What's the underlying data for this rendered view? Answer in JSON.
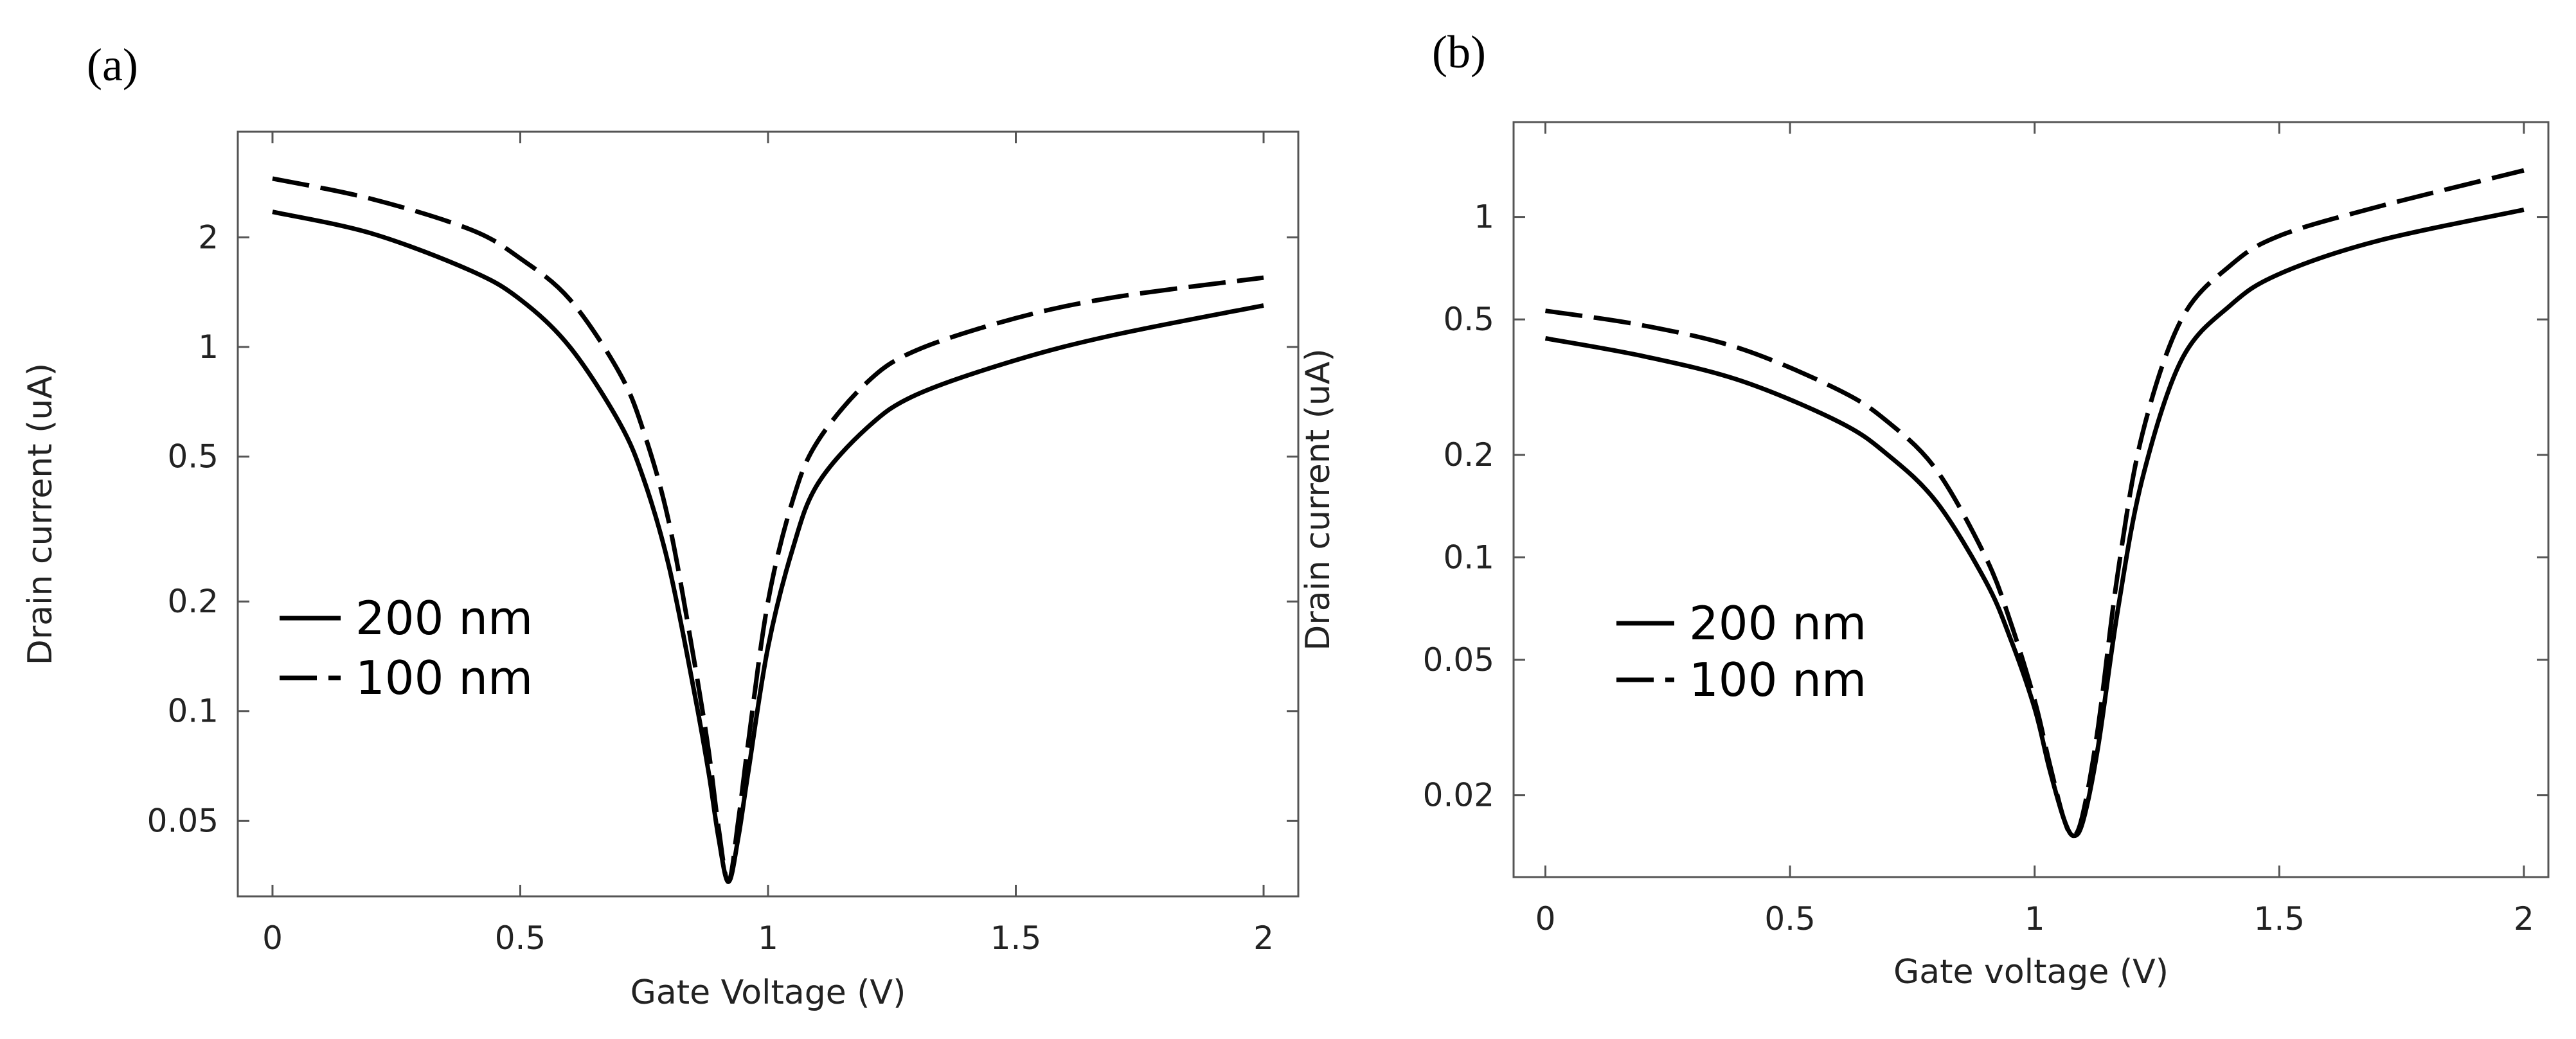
{
  "chart_data": [
    {
      "type": "line",
      "panel_label": "(a)",
      "xlabel": "Gate Voltage (V)",
      "ylabel": "Drain current (uA)",
      "yscale": "log",
      "xlim": [
        -0.07,
        2.07
      ],
      "ylim": [
        0.031,
        3.9
      ],
      "x_ticks": [
        {
          "value": 0,
          "label": "0"
        },
        {
          "value": 0.5,
          "label": "0.5"
        },
        {
          "value": 1,
          "label": "1"
        },
        {
          "value": 1.5,
          "label": "1.5"
        },
        {
          "value": 2,
          "label": "2"
        }
      ],
      "y_ticks": [
        {
          "value": 0.05,
          "label": "0.05"
        },
        {
          "value": 0.1,
          "label": "0.1"
        },
        {
          "value": 0.2,
          "label": "0.2"
        },
        {
          "value": 0.5,
          "label": "0.5"
        },
        {
          "value": 1,
          "label": "1"
        },
        {
          "value": 2,
          "label": "2"
        }
      ],
      "legend_position": "bottom-left",
      "series": [
        {
          "name": "200 nm",
          "style": "solid",
          "x": [
            0,
            0.2,
            0.4,
            0.5,
            0.6,
            0.7,
            0.75,
            0.8,
            0.85,
            0.88,
            0.9,
            0.92,
            0.94,
            0.96,
            1.0,
            1.05,
            1.1,
            1.2,
            1.3,
            1.5,
            1.7,
            2.0
          ],
          "y": [
            2.35,
            2.05,
            1.62,
            1.35,
            1.0,
            0.62,
            0.43,
            0.25,
            0.115,
            0.068,
            0.045,
            0.034,
            0.045,
            0.068,
            0.15,
            0.28,
            0.42,
            0.6,
            0.74,
            0.92,
            1.08,
            1.3
          ]
        },
        {
          "name": "100 nm",
          "style": "dashed",
          "x": [
            0,
            0.2,
            0.4,
            0.5,
            0.6,
            0.7,
            0.75,
            0.8,
            0.85,
            0.88,
            0.9,
            0.92,
            0.94,
            0.96,
            1.0,
            1.05,
            1.1,
            1.2,
            1.3,
            1.5,
            1.7,
            2.0
          ],
          "y": [
            2.9,
            2.55,
            2.1,
            1.75,
            1.35,
            0.85,
            0.58,
            0.33,
            0.14,
            0.078,
            0.048,
            0.034,
            0.05,
            0.082,
            0.2,
            0.38,
            0.55,
            0.8,
            0.98,
            1.2,
            1.37,
            1.55
          ]
        }
      ]
    },
    {
      "type": "line",
      "panel_label": "(b)",
      "xlabel": "Gate voltage (V)",
      "ylabel": "Drain current (uA)",
      "yscale": "log",
      "xlim": [
        -0.065,
        2.05
      ],
      "ylim": [
        0.0115,
        1.9
      ],
      "x_ticks": [
        {
          "value": 0,
          "label": "0"
        },
        {
          "value": 0.5,
          "label": "0.5"
        },
        {
          "value": 1,
          "label": "1"
        },
        {
          "value": 1.5,
          "label": "1.5"
        },
        {
          "value": 2,
          "label": "2"
        }
      ],
      "y_ticks": [
        {
          "value": 0.02,
          "label": "0.02"
        },
        {
          "value": 0.05,
          "label": "0.05"
        },
        {
          "value": 0.1,
          "label": "0.1"
        },
        {
          "value": 0.2,
          "label": "0.2"
        },
        {
          "value": 0.5,
          "label": "0.5"
        },
        {
          "value": 1,
          "label": "1"
        }
      ],
      "legend_position": "bottom-left",
      "series": [
        {
          "name": "200 nm",
          "style": "solid",
          "x": [
            0,
            0.2,
            0.4,
            0.6,
            0.7,
            0.8,
            0.9,
            0.95,
            1.0,
            1.03,
            1.06,
            1.08,
            1.1,
            1.13,
            1.17,
            1.22,
            1.3,
            1.4,
            1.5,
            1.7,
            2.0
          ],
          "y": [
            0.44,
            0.39,
            0.33,
            0.25,
            0.2,
            0.145,
            0.085,
            0.058,
            0.036,
            0.024,
            0.017,
            0.0152,
            0.017,
            0.028,
            0.07,
            0.17,
            0.38,
            0.55,
            0.68,
            0.85,
            1.05
          ]
        },
        {
          "name": "100 nm",
          "style": "dashed",
          "x": [
            0,
            0.2,
            0.4,
            0.6,
            0.7,
            0.8,
            0.9,
            0.95,
            1.0,
            1.03,
            1.06,
            1.08,
            1.1,
            1.13,
            1.17,
            1.22,
            1.3,
            1.4,
            1.5,
            1.7,
            2.0
          ],
          "y": [
            0.53,
            0.48,
            0.41,
            0.31,
            0.25,
            0.18,
            0.1,
            0.065,
            0.038,
            0.025,
            0.017,
            0.0152,
            0.018,
            0.032,
            0.09,
            0.23,
            0.5,
            0.72,
            0.88,
            1.07,
            1.37
          ]
        }
      ]
    }
  ]
}
